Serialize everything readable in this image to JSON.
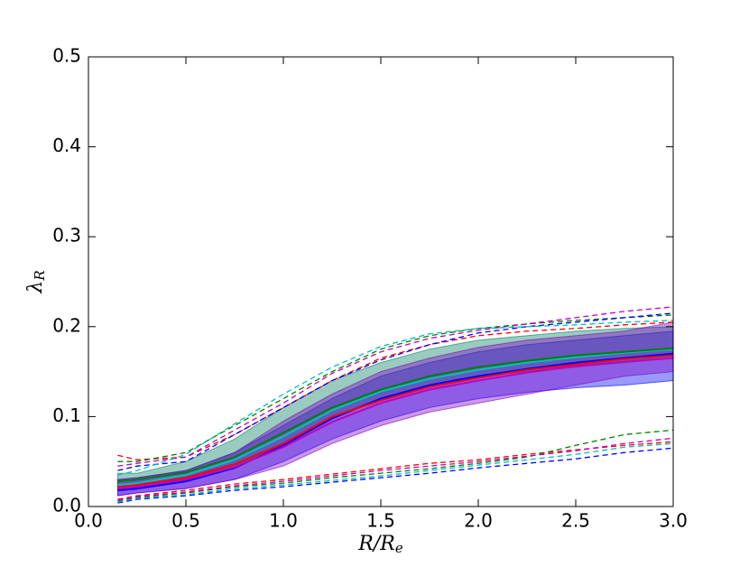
{
  "chart_data": {
    "type": "line",
    "xlabel": "R/R",
    "xlabel_sub": "e",
    "ylabel": "λ",
    "ylabel_sub": "R",
    "x": [
      0.15,
      0.25,
      0.5,
      0.75,
      1.0,
      1.25,
      1.5,
      1.75,
      2.0,
      2.25,
      2.5,
      2.75,
      3.0
    ],
    "xlim": [
      0,
      3
    ],
    "ylim": [
      0,
      0.5
    ],
    "xticks": [
      {
        "value": 0,
        "label": "0.0"
      },
      0.5,
      {
        "value": 1,
        "label": "1.0"
      },
      1.5,
      {
        "value": 2,
        "label": "2.0"
      },
      2.5,
      {
        "value": 3,
        "label": "3.0"
      }
    ],
    "yticks": [
      {
        "value": 0,
        "label": "0.0"
      },
      0.1,
      0.2,
      0.3,
      0.4,
      0.5
    ],
    "grid": false,
    "bands": [
      {
        "color": "#0000ff",
        "lower": [
          0.012,
          0.015,
          0.02,
          0.03,
          0.05,
          0.075,
          0.095,
          0.11,
          0.12,
          0.127,
          0.132,
          0.135,
          0.14
        ],
        "upper": [
          0.03,
          0.032,
          0.04,
          0.06,
          0.09,
          0.12,
          0.145,
          0.16,
          0.172,
          0.18,
          0.185,
          0.19,
          0.195
        ]
      },
      {
        "color": "#008060",
        "lower": [
          0.02,
          0.025,
          0.03,
          0.045,
          0.07,
          0.1,
          0.12,
          0.135,
          0.145,
          0.15,
          0.155,
          0.16,
          0.165
        ],
        "upper": [
          0.037,
          0.037,
          0.05,
          0.075,
          0.11,
          0.14,
          0.16,
          0.175,
          0.185,
          0.19,
          0.195,
          0.198,
          0.2
        ]
      },
      {
        "color": "#8000c0",
        "lower": [
          0.012,
          0.015,
          0.02,
          0.03,
          0.045,
          0.07,
          0.09,
          0.105,
          0.115,
          0.125,
          0.135,
          0.145,
          0.15
        ],
        "upper": [
          0.03,
          0.032,
          0.04,
          0.06,
          0.095,
          0.125,
          0.15,
          0.165,
          0.177,
          0.185,
          0.19,
          0.195,
          0.205
        ]
      }
    ],
    "series": [
      {
        "color": "#0000ff",
        "style": "solid",
        "values": [
          0.018,
          0.02,
          0.028,
          0.043,
          0.068,
          0.098,
          0.12,
          0.135,
          0.145,
          0.153,
          0.16,
          0.165,
          0.17
        ]
      },
      {
        "color": "#ff0000",
        "style": "solid",
        "values": [
          0.022,
          0.024,
          0.032,
          0.047,
          0.07,
          0.1,
          0.118,
          0.133,
          0.143,
          0.152,
          0.158,
          0.164,
          0.168
        ]
      },
      {
        "color": "#00bfbf",
        "style": "solid",
        "values": [
          0.024,
          0.026,
          0.035,
          0.052,
          0.078,
          0.107,
          0.128,
          0.142,
          0.152,
          0.16,
          0.166,
          0.171,
          0.175
        ]
      },
      {
        "color": "#008000",
        "style": "solid",
        "values": [
          0.028,
          0.03,
          0.038,
          0.055,
          0.082,
          0.11,
          0.13,
          0.145,
          0.155,
          0.162,
          0.168,
          0.172,
          0.176
        ]
      },
      {
        "color": "#bf00bf",
        "style": "solid",
        "values": [
          0.02,
          0.022,
          0.03,
          0.044,
          0.066,
          0.094,
          0.115,
          0.13,
          0.14,
          0.149,
          0.156,
          0.161,
          0.165
        ]
      },
      {
        "color": "#ff0000",
        "style": "dashed",
        "values": [
          0.057,
          0.052,
          0.055,
          0.08,
          0.11,
          0.14,
          0.165,
          0.18,
          0.19,
          0.195,
          0.198,
          0.202,
          0.205
        ]
      },
      {
        "color": "#008000",
        "style": "dashed",
        "values": [
          0.05,
          0.05,
          0.06,
          0.09,
          0.12,
          0.15,
          0.175,
          0.19,
          0.198,
          0.203,
          0.207,
          0.21,
          0.213
        ]
      },
      {
        "color": "#0000ff",
        "style": "dashed",
        "values": [
          0.04,
          0.045,
          0.05,
          0.08,
          0.11,
          0.14,
          0.163,
          0.18,
          0.193,
          0.2,
          0.205,
          0.21,
          0.215
        ]
      },
      {
        "color": "#bf00bf",
        "style": "dashed",
        "values": [
          0.045,
          0.048,
          0.055,
          0.085,
          0.115,
          0.148,
          0.172,
          0.187,
          0.196,
          0.203,
          0.21,
          0.217,
          0.222
        ]
      },
      {
        "color": "#00bfbf",
        "style": "dashed",
        "values": [
          0.035,
          0.04,
          0.058,
          0.092,
          0.125,
          0.155,
          0.178,
          0.192,
          0.198,
          0.2,
          0.202,
          0.205,
          0.207
        ]
      },
      {
        "color": "#ff0000",
        "style": "dashed",
        "values": [
          0.008,
          0.012,
          0.018,
          0.025,
          0.03,
          0.036,
          0.042,
          0.048,
          0.052,
          0.058,
          0.063,
          0.068,
          0.072
        ]
      },
      {
        "color": "#008000",
        "style": "dashed",
        "values": [
          0.006,
          0.01,
          0.015,
          0.022,
          0.026,
          0.032,
          0.037,
          0.042,
          0.048,
          0.055,
          0.068,
          0.08,
          0.085
        ]
      },
      {
        "color": "#0000ff",
        "style": "dashed",
        "values": [
          0.004,
          0.008,
          0.012,
          0.018,
          0.022,
          0.027,
          0.032,
          0.037,
          0.043,
          0.048,
          0.053,
          0.06,
          0.065
        ]
      },
      {
        "color": "#00bfbf",
        "style": "dashed",
        "values": [
          0.005,
          0.009,
          0.013,
          0.02,
          0.024,
          0.029,
          0.034,
          0.04,
          0.046,
          0.052,
          0.058,
          0.066,
          0.07
        ]
      },
      {
        "color": "#bf00bf",
        "style": "dashed",
        "values": [
          0.007,
          0.011,
          0.016,
          0.023,
          0.028,
          0.034,
          0.04,
          0.045,
          0.05,
          0.056,
          0.062,
          0.07,
          0.076
        ]
      }
    ]
  }
}
